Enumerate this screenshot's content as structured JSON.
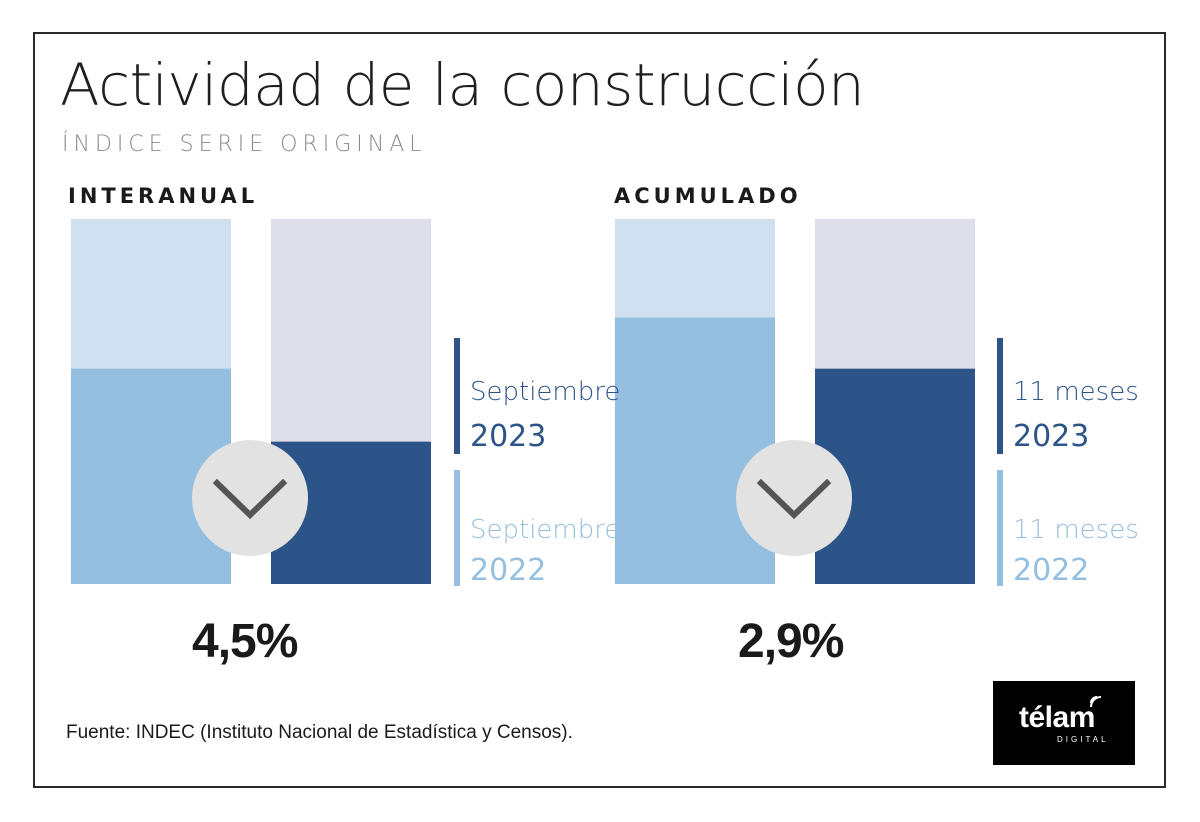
{
  "title": "Actividad de la construcción",
  "subtitle": "ÍNDICE SERIE ORIGINAL",
  "colors": {
    "series_2022": "#94bfe0",
    "series_2023": "#2d5489",
    "bg_2022": "#cfe1f0",
    "bg_2023": "#dedfea",
    "circle": "#e2e2e2",
    "chevron": "#555555"
  },
  "chart_data": [
    {
      "type": "bar",
      "panel_label": "INTERANUAL",
      "indicator": "chevron-down",
      "headline_value": "4,5%",
      "series": [
        {
          "label_line1": "Septiembre",
          "label_line2": "2022",
          "value": 0.59
        },
        {
          "label_line1": "Septiembre",
          "label_line2": "2023",
          "value": 0.39
        }
      ]
    },
    {
      "type": "bar",
      "panel_label": "ACUMULADO",
      "indicator": "chevron-down",
      "headline_value": "2,9%",
      "series": [
        {
          "label_line1": "11 meses",
          "label_line2": "2022",
          "value": 0.73
        },
        {
          "label_line1": "11 meses",
          "label_line2": "2023",
          "value": 0.59
        }
      ]
    }
  ],
  "source": "Fuente: INDEC (Instituto Nacional de Estadística y Censos).",
  "logo": {
    "name": "télam",
    "sub": "DIGITAL"
  }
}
